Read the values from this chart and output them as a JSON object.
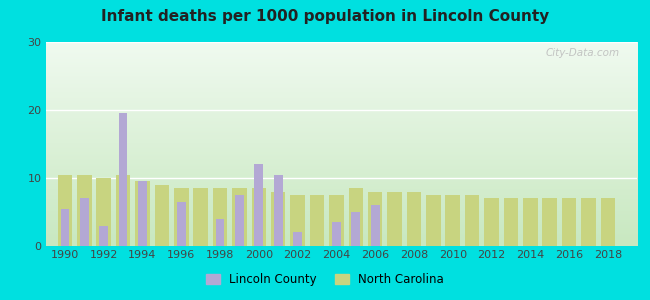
{
  "title": "Infant deaths per 1000 population in Lincoln County",
  "years": [
    1990,
    1991,
    1992,
    1993,
    1994,
    1995,
    1996,
    1997,
    1998,
    1999,
    2000,
    2001,
    2002,
    2003,
    2004,
    2005,
    2006,
    2007,
    2008,
    2009,
    2010,
    2011,
    2012,
    2013,
    2014,
    2015,
    2016,
    2017,
    2018
  ],
  "lincoln_county": [
    5.5,
    7.0,
    3.0,
    19.5,
    9.5,
    null,
    6.5,
    null,
    4.0,
    7.5,
    12.0,
    10.5,
    2.0,
    null,
    3.5,
    5.0,
    6.0,
    null,
    null,
    null,
    null,
    null,
    null,
    null,
    null,
    null,
    null,
    null,
    null
  ],
  "north_carolina": [
    10.5,
    10.5,
    10.0,
    10.5,
    9.5,
    9.0,
    8.5,
    8.5,
    8.5,
    8.5,
    8.5,
    8.0,
    7.5,
    7.5,
    7.5,
    8.5,
    8.0,
    8.0,
    8.0,
    7.5,
    7.5,
    7.5,
    7.0,
    7.0,
    7.0,
    7.0,
    7.0,
    7.0,
    7.0
  ],
  "lincoln_color": "#b3a8d4",
  "nc_color": "#c8d480",
  "ylim": [
    0,
    30
  ],
  "yticks": [
    0,
    10,
    20,
    30
  ],
  "bg_outer": "#00e0e0",
  "bg_plot_color1": "#ffffff",
  "bg_plot_color2": "#d0e8c8",
  "watermark": "City-Data.com",
  "bar_width": 0.75,
  "legend_lincoln": "Lincoln County",
  "legend_nc": "North Carolina",
  "xlim_left": 1989.0,
  "xlim_right": 2019.5
}
